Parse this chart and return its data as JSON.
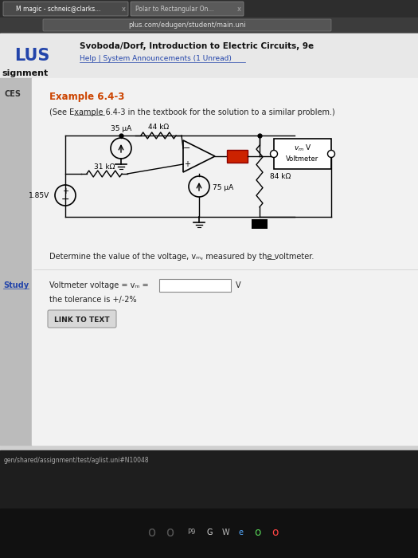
{
  "bg_outer": "#1a1a1a",
  "bg_browser_top": "#3a3a3a",
  "bg_browser_bar": "#5a5a5a",
  "bg_page": "#e8e8e8",
  "bg_content": "#f5f5f5",
  "bg_white": "#ffffff",
  "tab1_text": "M magic - schneic@clarks...",
  "tab2_text": "Polar to Rectangular On...",
  "url_text": "plus.com/edugen/student/main.uni",
  "logo_text": "LUS",
  "header_bold": "Svoboda/Dorf, Introduction to Electric Circuits, 9e",
  "header_link": "Help | System Announcements (1 Unread)",
  "assignment_text": "signment",
  "ces_label": "CES",
  "example_title": "Example 6.4-3",
  "example_subtitle": "(See Example 6.4-3 in the textbook for the solution to a similar problem.)",
  "resistor1_label": "35 μA",
  "resistor2_label": "44 kΩ",
  "resistor3_label": "31 kΩ",
  "resistor4_label": "75 μA",
  "resistor5_label": "84 kΩ",
  "voltage_label": "1.85V",
  "problem_text": "Determine the value of the voltage, vₘ, measured by the voltmeter.",
  "study_label": "Study",
  "answer_label": "Voltmeter voltage = vₘ =",
  "answer_unit": "V",
  "tolerance_text": "the tolerance is +/-2%",
  "button_text": "LINK TO TEXT",
  "url_bottom": "gen/shared/assignment/test/aglist.uni#N10048",
  "red_color": "#cc0000",
  "orange_example": "#cc4400",
  "dark_red": "#990000",
  "figwidth": 5.25,
  "figheight": 7.0,
  "dpi": 100
}
